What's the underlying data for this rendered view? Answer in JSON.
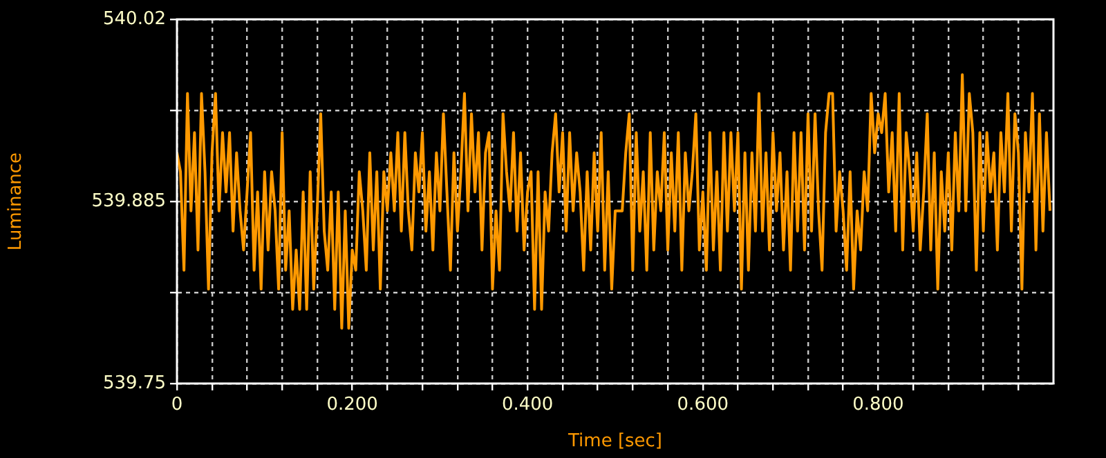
{
  "chart_data": {
    "type": "line",
    "xlabel": "Time [sec]",
    "ylabel": "Luminance",
    "xlim": [
      0,
      1
    ],
    "ylim": [
      539.75,
      540.02
    ],
    "xticks": [
      0,
      {
        "value": 0.04,
        "label": null
      },
      {
        "value": 0.08,
        "label": null
      },
      {
        "value": 0.12,
        "label": null
      },
      {
        "value": 0.16,
        "label": null
      },
      {
        "value": 0.2,
        "label": "0.200"
      },
      {
        "value": 0.24,
        "label": null
      },
      {
        "value": 0.28,
        "label": null
      },
      {
        "value": 0.32,
        "label": null
      },
      {
        "value": 0.36,
        "label": null
      },
      {
        "value": 0.4,
        "label": "0.400"
      },
      {
        "value": 0.44,
        "label": null
      },
      {
        "value": 0.48,
        "label": null
      },
      {
        "value": 0.52,
        "label": null
      },
      {
        "value": 0.56,
        "label": null
      },
      {
        "value": 0.6,
        "label": "0.600"
      },
      {
        "value": 0.64,
        "label": null
      },
      {
        "value": 0.68,
        "label": null
      },
      {
        "value": 0.72,
        "label": null
      },
      {
        "value": 0.76,
        "label": null
      },
      {
        "value": 0.8,
        "label": "0.800"
      },
      {
        "value": 0.84,
        "label": null
      },
      {
        "value": 0.88,
        "label": null
      },
      {
        "value": 0.92,
        "label": null
      },
      {
        "value": 0.96,
        "label": null
      }
    ],
    "yticks": [
      539.75,
      {
        "value": 539.8175,
        "label": null
      },
      539.885,
      {
        "value": 539.9525,
        "label": null
      },
      540.02
    ],
    "grid": true,
    "marker": "none",
    "line_style": "solid",
    "x": [
      0,
      0.004,
      0.008,
      0.012,
      0.016,
      0.02,
      0.024,
      0.028,
      0.032,
      0.036,
      0.04,
      0.044,
      0.048,
      0.052,
      0.056,
      0.06,
      0.064,
      0.068,
      0.072,
      0.076,
      0.08,
      0.084,
      0.088,
      0.092,
      0.096,
      0.1,
      0.104,
      0.108,
      0.112,
      0.116,
      0.12,
      0.124,
      0.128,
      0.132,
      0.136,
      0.14,
      0.144,
      0.148,
      0.152,
      0.156,
      0.16,
      0.164,
      0.168,
      0.172,
      0.176,
      0.18,
      0.184,
      0.188,
      0.192,
      0.196,
      0.2,
      0.204,
      0.208,
      0.212,
      0.216,
      0.22,
      0.224,
      0.228,
      0.232,
      0.236,
      0.24,
      0.244,
      0.248,
      0.252,
      0.256,
      0.26,
      0.264,
      0.268,
      0.272,
      0.276,
      0.28,
      0.284,
      0.288,
      0.292,
      0.296,
      0.3,
      0.304,
      0.308,
      0.312,
      0.316,
      0.32,
      0.324,
      0.328,
      0.332,
      0.336,
      0.34,
      0.344,
      0.348,
      0.352,
      0.356,
      0.36,
      0.364,
      0.368,
      0.372,
      0.376,
      0.38,
      0.384,
      0.388,
      0.392,
      0.396,
      0.4,
      0.404,
      0.408,
      0.412,
      0.416,
      0.42,
      0.424,
      0.428,
      0.432,
      0.436,
      0.44,
      0.444,
      0.448,
      0.452,
      0.456,
      0.46,
      0.464,
      0.468,
      0.472,
      0.476,
      0.48,
      0.484,
      0.488,
      0.492,
      0.496,
      0.5,
      0.504,
      0.508,
      0.512,
      0.516,
      0.52,
      0.524,
      0.528,
      0.532,
      0.536,
      0.54,
      0.544,
      0.548,
      0.552,
      0.556,
      0.56,
      0.564,
      0.568,
      0.572,
      0.576,
      0.58,
      0.584,
      0.588,
      0.592,
      0.596,
      0.6,
      0.604,
      0.608,
      0.612,
      0.616,
      0.62,
      0.624,
      0.628,
      0.632,
      0.636,
      0.64,
      0.644,
      0.648,
      0.652,
      0.656,
      0.66,
      0.664,
      0.668,
      0.672,
      0.676,
      0.68,
      0.684,
      0.688,
      0.692,
      0.696,
      0.7,
      0.704,
      0.708,
      0.712,
      0.716,
      0.72,
      0.724,
      0.728,
      0.732,
      0.736,
      0.74,
      0.744,
      0.748,
      0.752,
      0.756,
      0.76,
      0.764,
      0.768,
      0.772,
      0.776,
      0.78,
      0.784,
      0.788,
      0.792,
      0.796,
      0.8,
      0.804,
      0.808,
      0.812,
      0.816,
      0.82,
      0.824,
      0.828,
      0.832,
      0.836,
      0.84,
      0.844,
      0.848,
      0.852,
      0.856,
      0.86,
      0.864,
      0.868,
      0.872,
      0.876,
      0.88,
      0.884,
      0.888,
      0.892,
      0.896,
      0.9,
      0.904,
      0.908,
      0.912,
      0.916,
      0.92,
      0.924,
      0.928,
      0.932,
      0.936,
      0.94,
      0.944,
      0.948,
      0.952,
      0.956,
      0.96,
      0.964,
      0.968,
      0.972,
      0.976,
      0.98,
      0.984,
      0.988,
      0.992,
      0.996
    ],
    "series": [
      {
        "color": "#ff9900",
        "values": [
          539.921,
          539.907,
          539.834,
          539.965,
          539.878,
          539.936,
          539.849,
          539.965,
          539.907,
          539.82,
          539.921,
          539.965,
          539.878,
          539.936,
          539.892,
          539.936,
          539.863,
          539.921,
          539.878,
          539.849,
          539.892,
          539.936,
          539.834,
          539.892,
          539.82,
          539.907,
          539.849,
          539.907,
          539.878,
          539.82,
          539.936,
          539.834,
          539.878,
          539.805,
          539.849,
          539.805,
          539.892,
          539.805,
          539.907,
          539.82,
          539.878,
          539.95,
          539.863,
          539.834,
          539.892,
          539.805,
          539.892,
          539.791,
          539.878,
          539.791,
          539.849,
          539.834,
          539.907,
          539.878,
          539.834,
          539.921,
          539.849,
          539.907,
          539.82,
          539.907,
          539.878,
          539.921,
          539.878,
          539.936,
          539.863,
          539.936,
          539.878,
          539.849,
          539.921,
          539.892,
          539.936,
          539.863,
          539.907,
          539.849,
          539.921,
          539.878,
          539.95,
          539.892,
          539.834,
          539.921,
          539.863,
          539.907,
          539.965,
          539.878,
          539.95,
          539.892,
          539.936,
          539.849,
          539.921,
          539.936,
          539.82,
          539.878,
          539.834,
          539.95,
          539.907,
          539.878,
          539.936,
          539.863,
          539.921,
          539.849,
          539.892,
          539.907,
          539.805,
          539.907,
          539.805,
          539.892,
          539.863,
          539.921,
          539.95,
          539.892,
          539.936,
          539.863,
          539.936,
          539.878,
          539.921,
          539.892,
          539.834,
          539.907,
          539.849,
          539.921,
          539.863,
          539.936,
          539.834,
          539.907,
          539.82,
          539.878,
          539.878,
          539.878,
          539.921,
          539.95,
          539.834,
          539.936,
          539.863,
          539.907,
          539.834,
          539.936,
          539.849,
          539.907,
          539.878,
          539.936,
          539.849,
          539.921,
          539.863,
          539.936,
          539.834,
          539.921,
          539.878,
          539.907,
          539.95,
          539.849,
          539.892,
          539.834,
          539.936,
          539.849,
          539.907,
          539.834,
          539.936,
          539.863,
          539.936,
          539.878,
          539.936,
          539.82,
          539.921,
          539.834,
          539.921,
          539.863,
          539.965,
          539.863,
          539.921,
          539.849,
          539.936,
          539.878,
          539.921,
          539.849,
          539.907,
          539.834,
          539.936,
          539.863,
          539.936,
          539.849,
          539.95,
          539.863,
          539.95,
          539.878,
          539.834,
          539.936,
          539.965,
          539.965,
          539.863,
          539.907,
          539.878,
          539.834,
          539.907,
          539.82,
          539.878,
          539.849,
          539.907,
          539.878,
          539.965,
          539.921,
          539.95,
          539.936,
          539.965,
          539.892,
          539.936,
          539.863,
          539.965,
          539.849,
          539.936,
          539.907,
          539.863,
          539.921,
          539.849,
          539.892,
          539.95,
          539.849,
          539.921,
          539.82,
          539.907,
          539.863,
          539.921,
          539.849,
          539.936,
          539.878,
          539.979,
          539.878,
          539.965,
          539.936,
          539.834,
          539.936,
          539.863,
          539.936,
          539.892,
          539.921,
          539.849,
          539.936,
          539.892,
          539.965,
          539.863,
          539.95,
          539.921,
          539.82,
          539.936,
          539.892,
          539.965,
          539.849,
          539.95,
          539.863,
          539.936,
          539.878
        ]
      }
    ]
  }
}
